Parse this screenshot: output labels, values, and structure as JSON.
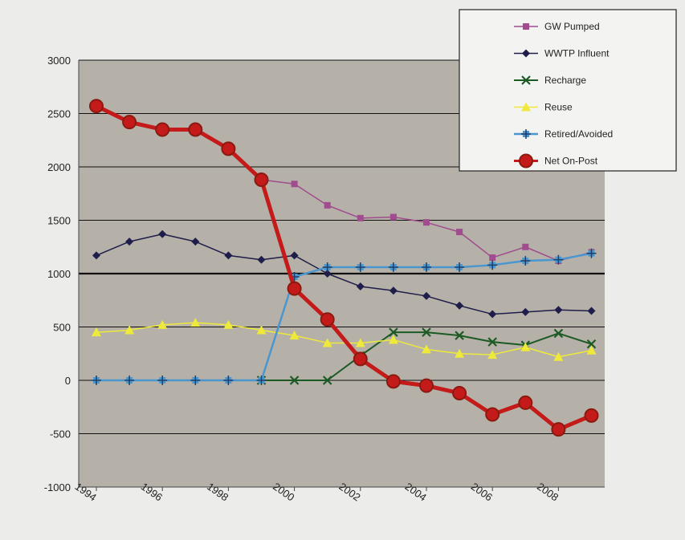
{
  "chart_data": {
    "type": "line",
    "title": "",
    "xlabel": "",
    "ylabel": "",
    "ylim": [
      -1000,
      3000
    ],
    "yticks": [
      3000,
      2500,
      2000,
      1500,
      1000,
      500,
      0,
      -500,
      -1000
    ],
    "x": [
      1994,
      1995,
      1996,
      1997,
      1998,
      1999,
      2000,
      2001,
      2002,
      2003,
      2004,
      2005,
      2006,
      2007,
      2008,
      2009
    ],
    "xtick_labels": [
      "1994",
      "1996",
      "1998",
      "2000",
      "2002",
      "2004",
      "2006",
      "2008"
    ],
    "plot_background": "#b5b1a8",
    "gridlines": "horizontal",
    "legend_position": "top-right",
    "series": [
      {
        "name": "GW Pumped",
        "color": "#a04c8e",
        "marker": "square",
        "line_width": 1.5,
        "values": [
          null,
          null,
          null,
          null,
          null,
          1880,
          1840,
          1640,
          1520,
          1530,
          1480,
          1390,
          1150,
          1250,
          1120,
          1200
        ]
      },
      {
        "name": "WWTP Influent",
        "color": "#1f1d4a",
        "marker": "diamond",
        "line_width": 1.5,
        "values": [
          1170,
          1300,
          1370,
          1300,
          1170,
          1130,
          1170,
          1000,
          880,
          840,
          790,
          700,
          620,
          640,
          660,
          650
        ]
      },
      {
        "name": "Recharge",
        "color": "#1c5a24",
        "marker": "x",
        "line_width": 2,
        "values": [
          null,
          null,
          null,
          null,
          null,
          0,
          0,
          0,
          230,
          450,
          450,
          420,
          360,
          330,
          440,
          340
        ]
      },
      {
        "name": "Reuse",
        "color": "#eee93a",
        "marker": "triangle",
        "line_width": 1.5,
        "values": [
          450,
          470,
          520,
          540,
          520,
          470,
          420,
          350,
          350,
          380,
          290,
          250,
          240,
          310,
          220,
          280
        ]
      },
      {
        "name": "Retired/Avoided",
        "color": "#4a97d0",
        "marker": "plus-square",
        "line_width": 2.5,
        "values": [
          0,
          0,
          0,
          0,
          0,
          0,
          970,
          1060,
          1060,
          1060,
          1060,
          1060,
          1080,
          1120,
          1130,
          1190
        ]
      },
      {
        "name": "Net On-Post",
        "color": "#c41a1a",
        "marker": "big-circle",
        "line_width": 5,
        "values": [
          2570,
          2420,
          2350,
          2350,
          2170,
          1880,
          860,
          570,
          200,
          -10,
          -50,
          -120,
          -320,
          -210,
          -460,
          -330
        ]
      }
    ]
  }
}
